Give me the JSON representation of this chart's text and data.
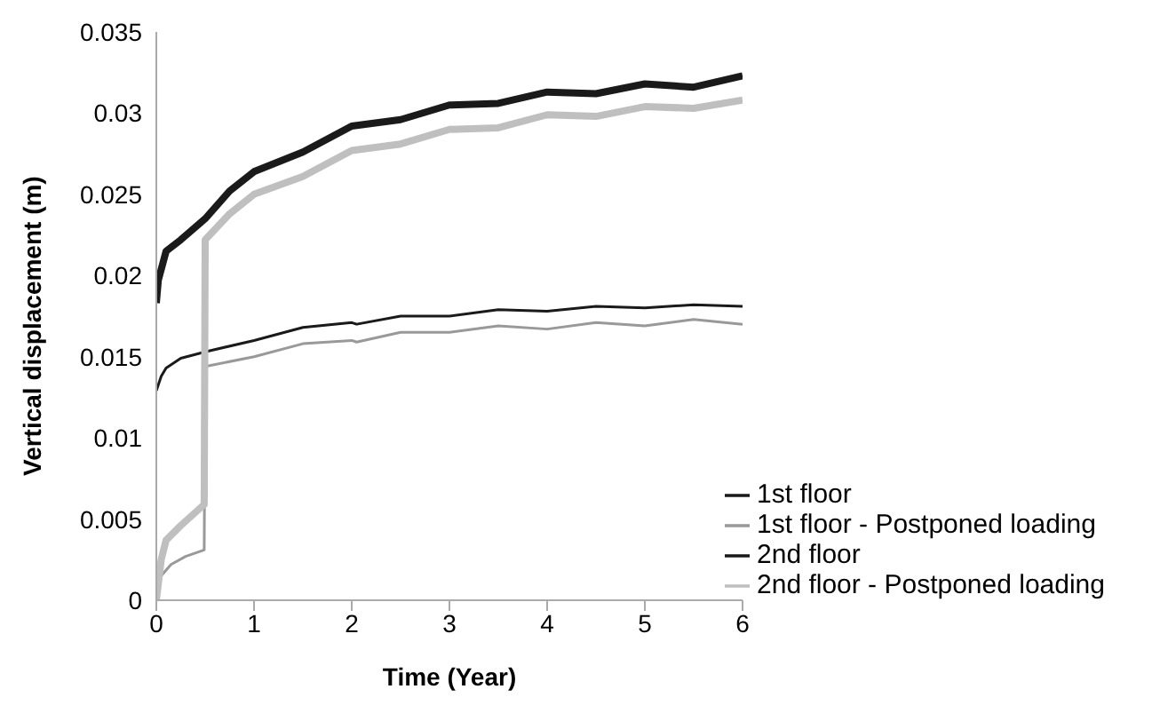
{
  "chart_data": {
    "type": "line",
    "xlabel": "Time (Year)",
    "ylabel": "Vertical displacement (m)",
    "xlim": [
      0,
      6
    ],
    "xticks": [
      0,
      1,
      2,
      3,
      4,
      5,
      6
    ],
    "ylim": [
      0,
      0.035
    ],
    "yticks": [
      0,
      0.005,
      0.01,
      0.015,
      0.02,
      0.025,
      0.03,
      0.035
    ],
    "grid": false,
    "legend": "bottom right",
    "marker": "none",
    "line_style": "solid",
    "series": [
      {
        "name": "1st floor",
        "color": "#1a1a1a",
        "x": [
          0,
          0.05,
          0.1,
          0.25,
          0.5,
          1,
          1.5,
          2,
          2.05,
          2.5,
          3,
          3.5,
          4,
          4.5,
          5,
          5.5,
          6
        ],
        "values": [
          0.0129,
          0.0138,
          0.0143,
          0.0149,
          0.0153,
          0.016,
          0.0168,
          0.0171,
          0.017,
          0.0175,
          0.0175,
          0.0179,
          0.0178,
          0.0181,
          0.018,
          0.0182,
          0.0181
        ]
      },
      {
        "name": "2nd floor",
        "color": "#1a1a1a",
        "x": [
          0,
          0.02,
          0.1,
          0.25,
          0.5,
          0.75,
          1,
          1.5,
          2,
          2.5,
          3,
          3.5,
          4,
          4.5,
          5,
          5.5,
          6
        ],
        "values": [
          0.0183,
          0.0197,
          0.0215,
          0.0222,
          0.0235,
          0.0252,
          0.0264,
          0.0276,
          0.0292,
          0.0296,
          0.0305,
          0.0306,
          0.0313,
          0.0312,
          0.0318,
          0.0316,
          0.0323
        ]
      },
      {
        "name": "1st floor - Postponed loading",
        "color": "#999999",
        "x": [
          0,
          0.05,
          0.15,
          0.3,
          0.49,
          0.5,
          1,
          1.5,
          2,
          2.05,
          2.5,
          3,
          3.5,
          4,
          4.5,
          5,
          5.5,
          6
        ],
        "values": [
          0,
          0.0015,
          0.0022,
          0.0027,
          0.0031,
          0.0144,
          0.015,
          0.0158,
          0.016,
          0.0159,
          0.0165,
          0.0165,
          0.0169,
          0.0167,
          0.0171,
          0.0169,
          0.0173,
          0.017
        ]
      },
      {
        "name": "2nd floor - Postponed loading",
        "color": "#bfbfbf",
        "x": [
          0,
          0.05,
          0.1,
          0.25,
          0.49,
          0.5,
          0.75,
          1,
          1.5,
          2,
          2.5,
          3,
          3.5,
          4,
          4.5,
          5,
          5.5,
          6
        ],
        "values": [
          0,
          0.0025,
          0.0037,
          0.0046,
          0.0059,
          0.0222,
          0.0238,
          0.025,
          0.0261,
          0.0277,
          0.0281,
          0.029,
          0.0291,
          0.0299,
          0.0298,
          0.0304,
          0.0303,
          0.0308
        ]
      }
    ]
  }
}
